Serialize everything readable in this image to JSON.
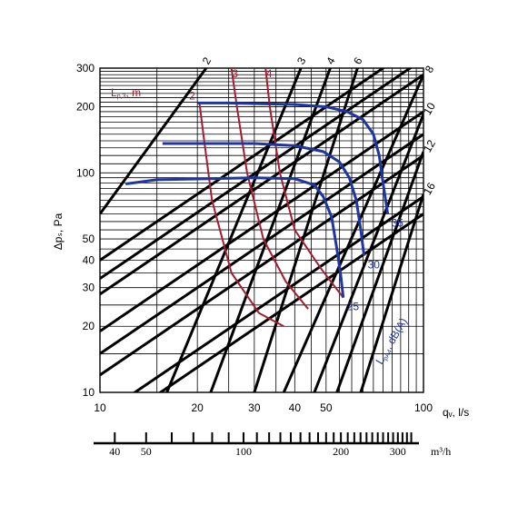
{
  "chart_data": {
    "type": "line",
    "x_scale": "log",
    "y_scale": "log",
    "xlim": [
      10,
      100
    ],
    "ylim": [
      10,
      300
    ],
    "grid": true,
    "ylabel": "Δpₛ, Pa",
    "xlabel": "qᵥ, l/s",
    "x_ticks": [
      "10",
      "20",
      "30",
      "40",
      "50",
      "100"
    ],
    "y_ticks": [
      "10",
      "20",
      "30",
      "40",
      "50",
      "100",
      "200",
      "300"
    ],
    "lower_axis": {
      "unit": "m³/h",
      "ticks": [
        "40",
        "50",
        "100",
        "200",
        "300"
      ]
    },
    "l_label_base": "L",
    "l_label_sub": "p,3",
    "l_label_unit": ", m",
    "blue_label_base": "L",
    "blue_label_sub": "pA4",
    "blue_label_unit": ", dB(A)",
    "duct_lines": [
      {
        "label": "2",
        "x": [
          10,
          21.3
        ],
        "y": [
          65,
          300
        ]
      },
      {
        "label": "3",
        "x": [
          16.1,
          41.8
        ],
        "y": [
          10,
          300
        ]
      },
      {
        "label": "4",
        "x": [
          22,
          51.5
        ],
        "y": [
          10,
          300
        ]
      },
      {
        "label": "6",
        "x": [
          30,
          62.5
        ],
        "y": [
          10,
          300
        ]
      },
      {
        "label": "8",
        "x": [
          37,
          100
        ],
        "y": [
          10,
          280
        ]
      },
      {
        "label": "10",
        "x": [
          46,
          100
        ],
        "y": [
          10,
          185
        ]
      },
      {
        "label": "12",
        "x": [
          54,
          100
        ],
        "y": [
          10,
          125
        ]
      },
      {
        "label": "16",
        "x": [
          64,
          100
        ],
        "y": [
          10,
          80
        ]
      },
      {
        "label": "",
        "x": [
          10,
          100
        ],
        "y": [
          40,
          400
        ]
      },
      {
        "label": "",
        "x": [
          10,
          100
        ],
        "y": [
          33,
          330
        ]
      },
      {
        "label": "",
        "x": [
          10,
          100
        ],
        "y": [
          28,
          280
        ]
      },
      {
        "label": "",
        "x": [
          10,
          100
        ],
        "y": [
          19,
          190
        ]
      },
      {
        "label": "",
        "x": [
          10,
          100
        ],
        "y": [
          15,
          150
        ]
      },
      {
        "label": "",
        "x": [
          10,
          100
        ],
        "y": [
          12,
          120
        ]
      },
      {
        "label": "",
        "x": [
          10,
          100
        ],
        "y": [
          7.8,
          78
        ]
      },
      {
        "label": "",
        "x": [
          10,
          100
        ],
        "y": [
          6.5,
          65
        ]
      }
    ],
    "fan_curves": [
      {
        "name": "35",
        "x": [
          20,
          25,
          40,
          50,
          58,
          65,
          70,
          73,
          75,
          77.5
        ],
        "y": [
          208,
          208,
          205,
          200,
          190,
          175,
          150,
          120,
          90,
          65
        ]
      },
      {
        "name": "30",
        "x": [
          15.6,
          30,
          40,
          49,
          55,
          59,
          62,
          64,
          65.5
        ],
        "y": [
          136,
          136,
          133,
          125,
          112,
          95,
          75,
          55,
          42
        ]
      },
      {
        "name": "25",
        "x": [
          12,
          15,
          30,
          40,
          46,
          49,
          52,
          54,
          55.5,
          56.5
        ],
        "y": [
          89,
          93,
          95,
          94,
          88,
          78,
          63,
          45,
          34,
          27
        ]
      }
    ],
    "sound_lines": [
      {
        "name": "2",
        "x": [
          20.3,
          21,
          22.2,
          25.5,
          31,
          37
        ],
        "y": [
          208,
          140,
          75,
          35,
          23,
          20
        ]
      },
      {
        "name": "3",
        "x": [
          25.5,
          26.5,
          28.5,
          32,
          37.5,
          44
        ],
        "y": [
          300,
          200,
          100,
          50,
          32,
          24
        ]
      },
      {
        "name": "4",
        "x": [
          32.5,
          33.5,
          36,
          40,
          48,
          56.5
        ],
        "y": [
          300,
          200,
          100,
          55,
          37,
          27
        ]
      }
    ]
  }
}
